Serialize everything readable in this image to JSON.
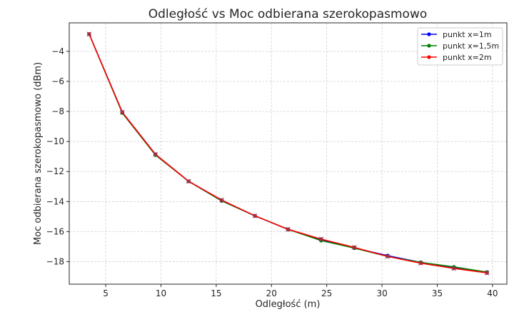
{
  "chart_data": {
    "type": "line",
    "title": "Odległość vs Moc odbierana szerokopasmowo",
    "xlabel": "Odległość (m)",
    "ylabel": "Moc odbierana szerokopasmowo (dBm)",
    "xlim": [
      1.7,
      41.3
    ],
    "ylim": [
      -19.5,
      -2.1
    ],
    "xticks": [
      5,
      10,
      15,
      20,
      25,
      30,
      35,
      40
    ],
    "yticks": [
      -4,
      -6,
      -8,
      -10,
      -12,
      -14,
      -16,
      -18
    ],
    "xtick_labels": [
      "5",
      "10",
      "15",
      "20",
      "25",
      "30",
      "35",
      "40"
    ],
    "ytick_labels": [
      "−4",
      "−6",
      "−8",
      "−10",
      "−12",
      "−14",
      "−16",
      "−18"
    ],
    "grid": true,
    "legend_position": "top-right",
    "x": [
      3.5,
      6.5,
      9.5,
      12.5,
      15.5,
      18.5,
      21.5,
      24.5,
      27.5,
      30.5,
      33.5,
      36.5,
      39.5
    ],
    "series": [
      {
        "name": "punkt x=1m",
        "color": "#0000ff",
        "values": [
          -2.85,
          -8.05,
          -10.85,
          -12.65,
          -13.95,
          -14.95,
          -15.85,
          -16.55,
          -17.1,
          -17.6,
          -18.05,
          -18.4,
          -18.7
        ]
      },
      {
        "name": "punkt x=1,5m",
        "color": "#008000",
        "values": [
          -2.85,
          -8.1,
          -10.9,
          -12.65,
          -13.95,
          -14.95,
          -15.85,
          -16.6,
          -17.1,
          -17.65,
          -18.05,
          -18.35,
          -18.7
        ]
      },
      {
        "name": "punkt x=2m",
        "color": "#ff0000",
        "values": [
          -2.85,
          -8.05,
          -10.85,
          -12.65,
          -13.9,
          -14.95,
          -15.85,
          -16.5,
          -17.05,
          -17.65,
          -18.1,
          -18.45,
          -18.75
        ]
      }
    ]
  }
}
